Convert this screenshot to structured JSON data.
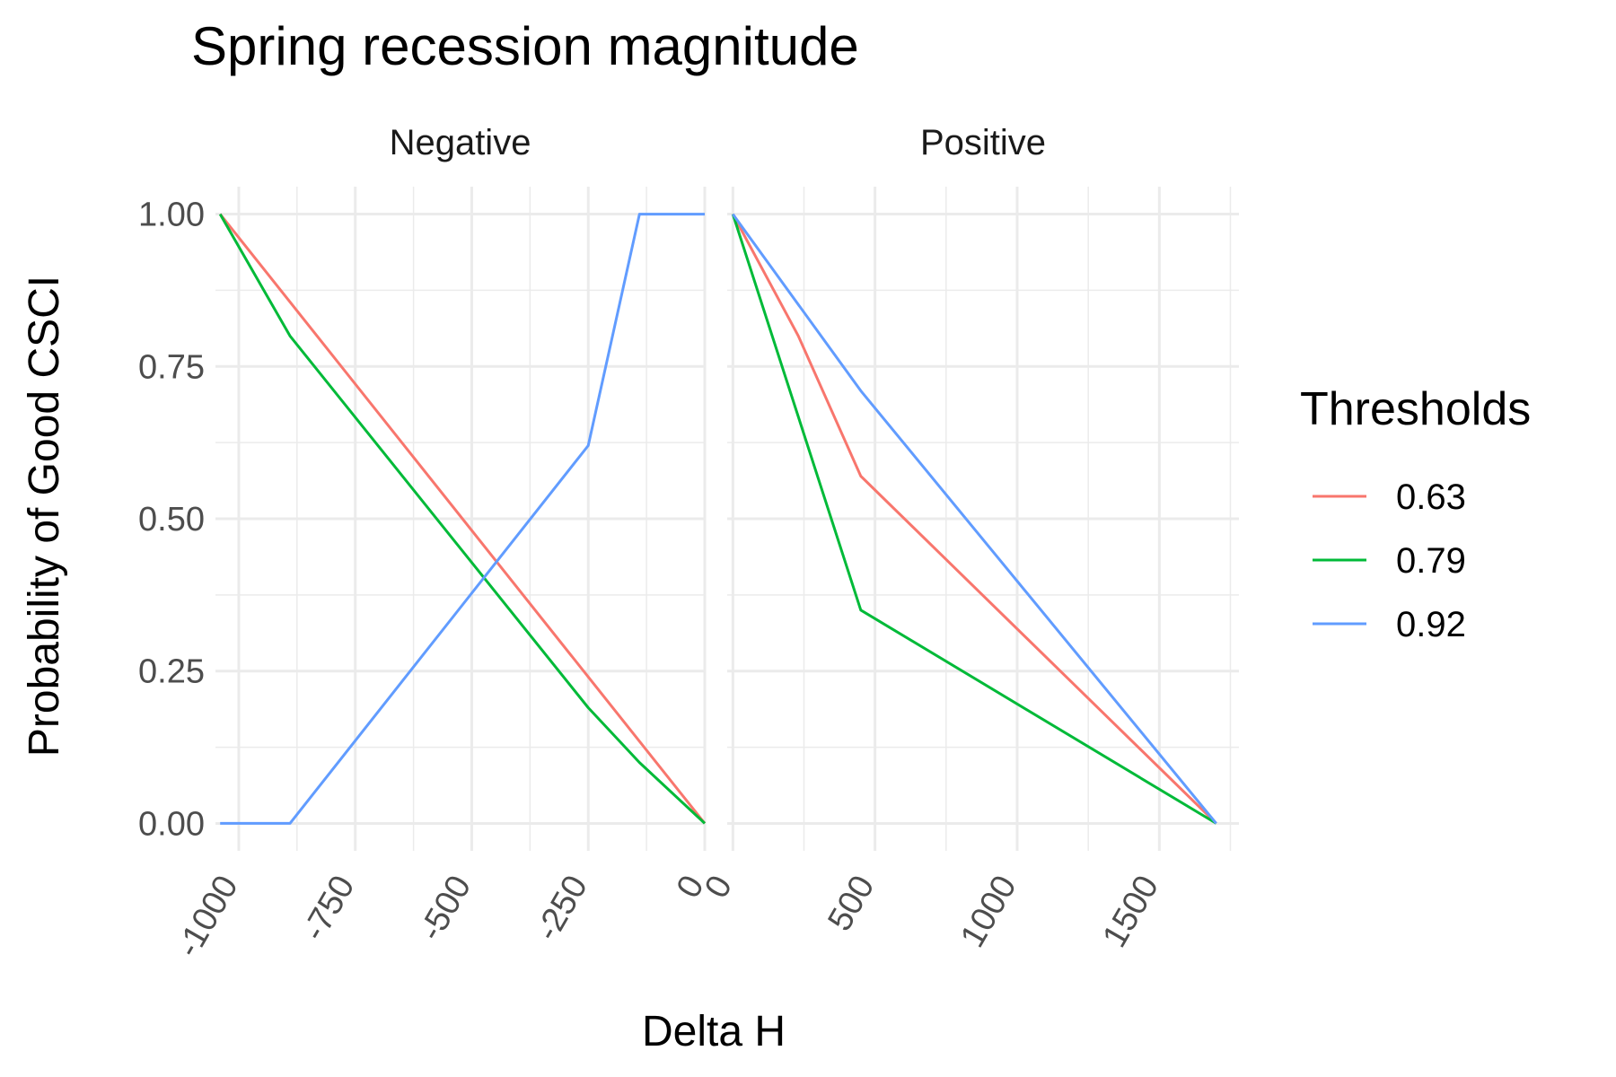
{
  "chart_data": {
    "type": "line",
    "title": "Spring recession magnitude",
    "xlabel": "Delta H",
    "ylabel": "Probability of Good CSCI",
    "legend": {
      "title": "Thresholds",
      "position": "right"
    },
    "grid": true,
    "ylim": [
      0,
      1
    ],
    "y_ticks": [
      "0.00",
      "0.25",
      "0.50",
      "0.75",
      "1.00"
    ],
    "y_tick_values": [
      0,
      0.25,
      0.5,
      0.75,
      1.0
    ],
    "colors": {
      "0.63": "#F8766D",
      "0.79": "#00BA38",
      "0.92": "#619CFF"
    },
    "panels": [
      {
        "label": "Negative",
        "xlim": [
          -1050,
          0
        ],
        "x_ticks": [
          "-1000",
          "-750",
          "-500",
          "-250",
          "0"
        ],
        "x_tick_values": [
          -1000,
          -750,
          -500,
          -250,
          0
        ],
        "series": [
          {
            "name": "0.63",
            "x": [
              -1040,
              0
            ],
            "y": [
              1.0,
              0.0
            ]
          },
          {
            "name": "0.79",
            "x": [
              -1040,
              -890,
              -250,
              -140,
              0
            ],
            "y": [
              1.0,
              0.8,
              0.19,
              0.1,
              0.0
            ]
          },
          {
            "name": "0.92",
            "x": [
              -1040,
              -890,
              -250,
              -140,
              0
            ],
            "y": [
              0.0,
              0.0,
              0.62,
              1.0,
              1.0
            ]
          }
        ]
      },
      {
        "label": "Positive",
        "xlim": [
          -20,
          1780
        ],
        "x_ticks": [
          "0",
          "500",
          "1000",
          "1500"
        ],
        "x_tick_values": [
          0,
          500,
          1000,
          1500
        ],
        "series": [
          {
            "name": "0.63",
            "x": [
              0,
              230,
              450,
              1700
            ],
            "y": [
              1.0,
              0.8,
              0.57,
              0.0
            ]
          },
          {
            "name": "0.79",
            "x": [
              0,
              450,
              1700
            ],
            "y": [
              1.0,
              0.35,
              0.0
            ]
          },
          {
            "name": "0.92",
            "x": [
              0,
              450,
              1700
            ],
            "y": [
              1.0,
              0.71,
              0.0
            ]
          }
        ]
      }
    ]
  }
}
